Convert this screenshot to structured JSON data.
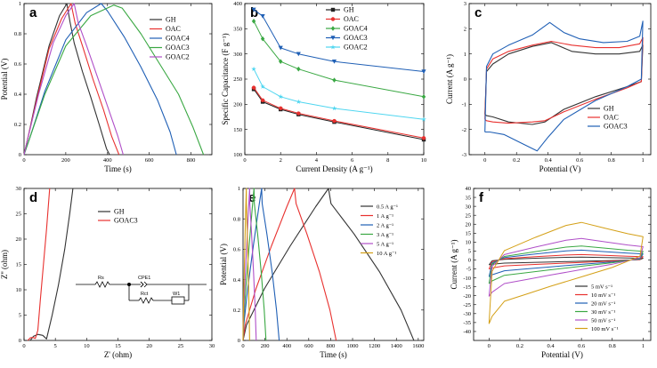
{
  "chart_data": [
    {
      "id": "a",
      "type": "line",
      "panel_label": "a",
      "xlabel": "Time (s)",
      "ylabel": "Potential (V)",
      "xlim": [
        0,
        900
      ],
      "ylim": [
        0,
        1.0
      ],
      "xticks": [
        0,
        200,
        400,
        600,
        800
      ],
      "yticks": [
        0,
        0.2,
        0.4,
        0.6,
        0.8,
        1.0
      ],
      "legend": "top-right",
      "series": [
        {
          "name": "GH",
          "color": "#333333",
          "x": [
            0,
            20,
            60,
            120,
            170,
            205,
            220,
            240,
            280,
            320,
            360,
            395,
            410
          ],
          "y": [
            0,
            0.12,
            0.38,
            0.72,
            0.92,
            1.0,
            0.88,
            0.74,
            0.55,
            0.38,
            0.2,
            0.04,
            0
          ]
        },
        {
          "name": "OAC",
          "color": "#e8312f",
          "x": [
            0,
            20,
            60,
            120,
            180,
            225,
            245,
            280,
            330,
            380,
            420,
            455
          ],
          "y": [
            0,
            0.12,
            0.36,
            0.7,
            0.9,
            1.0,
            0.87,
            0.72,
            0.5,
            0.3,
            0.12,
            0
          ]
        },
        {
          "name": "GOAC4",
          "color": "#1f5fb5",
          "x": [
            0,
            30,
            100,
            200,
            300,
            370,
            400,
            480,
            560,
            640,
            700,
            730
          ],
          "y": [
            0,
            0.12,
            0.42,
            0.76,
            0.94,
            1.0,
            0.95,
            0.78,
            0.58,
            0.36,
            0.15,
            0
          ]
        },
        {
          "name": "GOAC3",
          "color": "#3aa843",
          "x": [
            0,
            30,
            100,
            200,
            320,
            430,
            470,
            560,
            650,
            740,
            810,
            860
          ],
          "y": [
            0,
            0.12,
            0.4,
            0.72,
            0.92,
            0.99,
            0.97,
            0.8,
            0.6,
            0.4,
            0.18,
            0
          ]
        },
        {
          "name": "GOAC2",
          "color": "#b04fc8",
          "x": [
            0,
            20,
            70,
            140,
            200,
            240,
            260,
            300,
            350,
            400,
            450,
            475
          ],
          "y": [
            0,
            0.12,
            0.4,
            0.74,
            0.92,
            1.0,
            0.87,
            0.72,
            0.52,
            0.32,
            0.12,
            0
          ]
        }
      ]
    },
    {
      "id": "b",
      "type": "line",
      "panel_label": "b",
      "xlabel": "Current Density (A g⁻¹)",
      "ylabel": "Specific Capacitance (F g⁻¹)",
      "xlim": [
        0,
        10
      ],
      "ylim": [
        100,
        400
      ],
      "xticks": [
        0,
        2,
        4,
        6,
        8,
        10
      ],
      "yticks": [
        100,
        150,
        200,
        250,
        300,
        350,
        400
      ],
      "x": [
        0.5,
        1,
        2,
        3,
        5,
        10
      ],
      "legend": "top-right",
      "series": [
        {
          "name": "GH",
          "color": "#222222",
          "marker": "square",
          "values": [
            230,
            205,
            190,
            180,
            165,
            130
          ]
        },
        {
          "name": "OAC",
          "color": "#e8312f",
          "marker": "circle",
          "values": [
            233,
            208,
            192,
            182,
            167,
            133
          ]
        },
        {
          "name": "GOAC4",
          "color": "#3aa843",
          "marker": "diamond",
          "values": [
            365,
            330,
            285,
            270,
            248,
            215
          ]
        },
        {
          "name": "GOAC3",
          "color": "#1f5fb5",
          "marker": "triangle-down",
          "values": [
            388,
            375,
            312,
            300,
            285,
            265
          ]
        },
        {
          "name": "GOAC2",
          "color": "#4fd6f0",
          "marker": "star",
          "values": [
            270,
            235,
            215,
            205,
            192,
            170
          ]
        }
      ]
    },
    {
      "id": "c",
      "type": "line",
      "panel_label": "c",
      "xlabel": "Potential (V)",
      "ylabel": "Current (A g⁻¹)",
      "xlim": [
        -0.1,
        1.05
      ],
      "ylim": [
        -3,
        3
      ],
      "xticks": [
        0,
        0.2,
        0.4,
        0.6,
        0.8,
        1.0
      ],
      "yticks": [
        -3,
        -2,
        -1,
        0,
        1,
        2,
        3
      ],
      "legend": "bottom-right",
      "series": [
        {
          "name": "GH",
          "color": "#333333",
          "x": [
            0,
            0.01,
            0.05,
            0.15,
            0.3,
            0.42,
            0.55,
            0.7,
            0.85,
            0.98,
            1.0,
            0.99,
            0.9,
            0.7,
            0.5,
            0.38,
            0.3,
            0.15,
            0.05,
            0.01,
            0
          ],
          "y": [
            -1.4,
            0.3,
            0.6,
            1.0,
            1.3,
            1.45,
            1.1,
            1.0,
            1.0,
            1.1,
            1.35,
            -0.1,
            -0.3,
            -0.7,
            -1.2,
            -1.7,
            -1.8,
            -1.7,
            -1.5,
            -1.45,
            -1.4
          ]
        },
        {
          "name": "OAC",
          "color": "#e8312f",
          "x": [
            0,
            0.01,
            0.05,
            0.15,
            0.3,
            0.42,
            0.55,
            0.7,
            0.85,
            0.98,
            1.0,
            0.99,
            0.9,
            0.7,
            0.5,
            0.38,
            0.3,
            0.15,
            0.05,
            0.01,
            0
          ],
          "y": [
            -1.6,
            0.4,
            0.8,
            1.1,
            1.35,
            1.5,
            1.35,
            1.25,
            1.25,
            1.4,
            1.65,
            -0.1,
            -0.35,
            -0.8,
            -1.3,
            -1.65,
            -1.7,
            -1.75,
            -1.7,
            -1.65,
            -1.6
          ]
        },
        {
          "name": "GOAC3",
          "color": "#1f5fb5",
          "x": [
            0,
            0.01,
            0.05,
            0.15,
            0.3,
            0.41,
            0.5,
            0.6,
            0.75,
            0.9,
            0.98,
            1.0,
            0.99,
            0.9,
            0.7,
            0.5,
            0.4,
            0.33,
            0.25,
            0.12,
            0.03,
            0.01,
            0
          ],
          "y": [
            -2.1,
            0.5,
            1.0,
            1.35,
            1.75,
            2.25,
            1.85,
            1.6,
            1.45,
            1.5,
            1.7,
            2.3,
            0.0,
            -0.3,
            -0.85,
            -1.6,
            -2.3,
            -2.85,
            -2.6,
            -2.2,
            -2.1,
            -2.1,
            -2.1
          ]
        }
      ]
    },
    {
      "id": "d",
      "type": "line",
      "panel_label": "d",
      "xlabel": "Z' (ohm)",
      "ylabel": "Z'' (ohm)",
      "xlim": [
        0,
        30
      ],
      "ylim": [
        0,
        30
      ],
      "xticks": [
        0,
        5,
        10,
        15,
        20,
        25,
        30
      ],
      "yticks": [
        0,
        5,
        10,
        15,
        20,
        25,
        30
      ],
      "legend": "top-right",
      "circuit_labels": [
        "Rs",
        "CPE1",
        "Rct",
        "W1"
      ],
      "series": [
        {
          "name": "GH",
          "color": "#333333",
          "x": [
            1.0,
            1.5,
            2.2,
            3.0,
            3.6,
            4.5,
            5.5,
            6.5,
            7.3,
            7.8
          ],
          "y": [
            0,
            0.8,
            1.2,
            1.0,
            0.3,
            5,
            11,
            18,
            25,
            30
          ]
        },
        {
          "name": "GOAC3",
          "color": "#e8312f",
          "x": [
            0.6,
            1.0,
            1.4,
            1.8,
            2.2,
            2.6,
            3.1,
            3.6,
            4.1
          ],
          "y": [
            0,
            0.5,
            0.6,
            0.4,
            2,
            8,
            15,
            22,
            30
          ]
        }
      ]
    },
    {
      "id": "e",
      "type": "line",
      "panel_label": "e",
      "xlabel": "Time (s)",
      "ylabel": "Potential (V)",
      "xlim": [
        0,
        1650
      ],
      "ylim": [
        0,
        1.0
      ],
      "xticks": [
        0,
        200,
        400,
        600,
        800,
        1000,
        1200,
        1400,
        1600
      ],
      "yticks": [
        0,
        0.2,
        0.4,
        0.6,
        0.8,
        1.0
      ],
      "legend": "top-right",
      "series": [
        {
          "name": "0.5 A g⁻¹",
          "color": "#333333",
          "peak": 780,
          "end": 1560
        },
        {
          "name": "1 A g⁻¹",
          "color": "#e8312f",
          "peak": 470,
          "end": 850
        },
        {
          "name": "2 A g⁻¹",
          "color": "#1f5fb5",
          "peak": 170,
          "end": 330
        },
        {
          "name": "3 A g⁻¹",
          "color": "#3aa843",
          "peak": 100,
          "end": 210
        },
        {
          "name": "5 A g⁻¹",
          "color": "#b04fc8",
          "peak": 60,
          "end": 120
        },
        {
          "name": "10 A g⁻¹",
          "color": "#d4a017",
          "peak": 30,
          "end": 60
        }
      ]
    },
    {
      "id": "f",
      "type": "line",
      "panel_label": "f",
      "xlabel": "Potential (V)",
      "ylabel": "Current (A g⁻¹)",
      "xlim": [
        -0.1,
        1.05
      ],
      "ylim": [
        -45,
        40
      ],
      "xticks": [
        0,
        0.2,
        0.4,
        0.6,
        0.8,
        1.0
      ],
      "yticks": [
        -40,
        -35,
        -30,
        -25,
        -20,
        -15,
        -10,
        -5,
        0,
        5,
        10,
        15,
        20,
        25,
        30,
        35,
        40
      ],
      "legend": "bottom-right",
      "series": [
        {
          "name": "5 mV s⁻¹",
          "color": "#333333",
          "scale": 1.6
        },
        {
          "name": "10 mV s⁻¹",
          "color": "#e8312f",
          "scale": 3.0
        },
        {
          "name": "20 mV s⁻¹",
          "color": "#1f5fb5",
          "scale": 5.5
        },
        {
          "name": "30 mV s⁻¹",
          "color": "#3aa843",
          "scale": 7.8
        },
        {
          "name": "50 mV s⁻¹",
          "color": "#b04fc8",
          "scale": 12.0
        },
        {
          "name": "100 mV s⁻¹",
          "color": "#d4a017",
          "scale": 21.0
        }
      ]
    }
  ]
}
